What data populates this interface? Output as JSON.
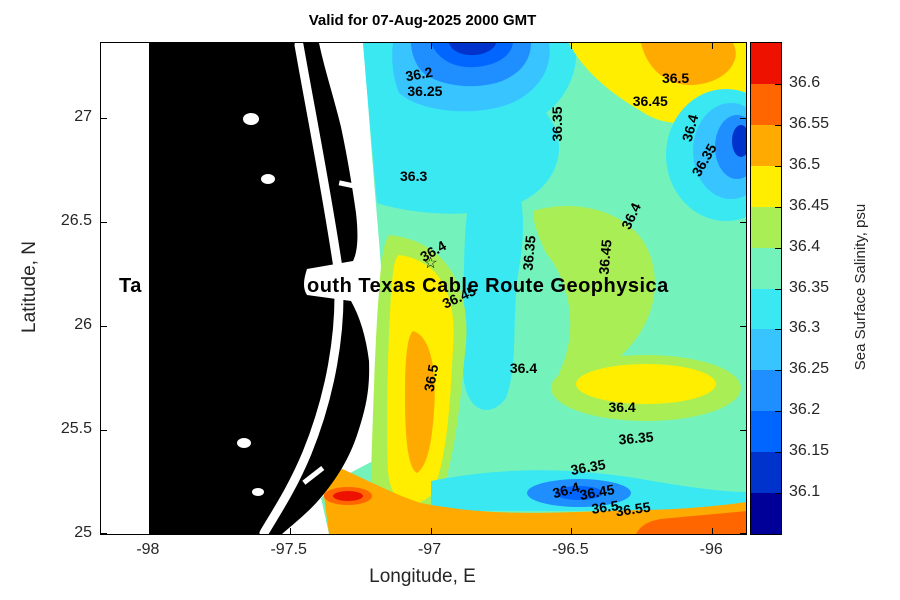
{
  "figure": {
    "overlay_text": {
      "left_fragment": "Ta",
      "right_fragment": "outh Texas Cable Route Geophysica"
    }
  },
  "chart_data": {
    "type": "contour",
    "title": "Valid for 07-Aug-2025 2000 GMT",
    "xlabel": "Longitude, E",
    "ylabel": "Latitude, N",
    "xlim": [
      -98.17,
      -95.88
    ],
    "ylim": [
      25,
      27.36
    ],
    "x_ticks": [
      -98,
      -97.5,
      -97,
      -96.5,
      -96
    ],
    "y_ticks": [
      25,
      25.5,
      26,
      26.5,
      27
    ],
    "grid": false,
    "land_color": "#000000",
    "colorbar": {
      "label": "Sea Surface Salinity, psu",
      "min": 36.05,
      "max": 36.65,
      "ticks": [
        36.1,
        36.15,
        36.2,
        36.25,
        36.3,
        36.35,
        36.4,
        36.45,
        36.5,
        36.55,
        36.6
      ],
      "band_colors": [
        "#000099",
        "#0033cc",
        "#0066ff",
        "#1f8fff",
        "#38c4ff",
        "#3ae8f2",
        "#74f2bb",
        "#aaee55",
        "#ffee00",
        "#ffaa00",
        "#ff6600",
        "#ee1100"
      ]
    },
    "contour_levels": [
      36.1,
      36.15,
      36.2,
      36.25,
      36.3,
      36.35,
      36.4,
      36.45,
      36.5,
      36.55,
      36.6
    ],
    "contour_labels": [
      {
        "value": 36.2,
        "lon": -97.04,
        "lat": 27.21,
        "rot": -10
      },
      {
        "value": 36.25,
        "lon": -97.02,
        "lat": 27.13,
        "rot": 0
      },
      {
        "value": 36.3,
        "lon": -97.06,
        "lat": 26.72,
        "rot": 0
      },
      {
        "value": 36.45,
        "lon": -96.22,
        "lat": 27.08,
        "rot": 0
      },
      {
        "value": 36.5,
        "lon": -96.13,
        "lat": 27.19,
        "rot": 0
      },
      {
        "value": 36.35,
        "lon": -96.55,
        "lat": 26.97,
        "rot": -90
      },
      {
        "value": 36.4,
        "lon": -96.08,
        "lat": 26.95,
        "rot": -75
      },
      {
        "value": 36.35,
        "lon": -96.03,
        "lat": 26.8,
        "rot": -60
      },
      {
        "value": 36.4,
        "lon": -96.29,
        "lat": 26.53,
        "rot": -65
      },
      {
        "value": 36.45,
        "lon": -96.38,
        "lat": 26.33,
        "rot": -85
      },
      {
        "value": 36.35,
        "lon": -96.65,
        "lat": 26.35,
        "rot": -85
      },
      {
        "value": 36.4,
        "lon": -96.99,
        "lat": 26.36,
        "rot": -30
      },
      {
        "value": 36.45,
        "lon": -96.9,
        "lat": 26.14,
        "rot": -25
      },
      {
        "value": 36.5,
        "lon": -97.0,
        "lat": 25.75,
        "rot": -80
      },
      {
        "value": 36.4,
        "lon": -96.67,
        "lat": 25.8,
        "rot": 0
      },
      {
        "value": 36.4,
        "lon": -96.32,
        "lat": 25.61,
        "rot": 0
      },
      {
        "value": 36.35,
        "lon": -96.27,
        "lat": 25.46,
        "rot": -5
      },
      {
        "value": 36.35,
        "lon": -96.44,
        "lat": 25.32,
        "rot": -10
      },
      {
        "value": 36.4,
        "lon": -96.52,
        "lat": 25.21,
        "rot": -15
      },
      {
        "value": 36.45,
        "lon": -96.41,
        "lat": 25.2,
        "rot": -10
      },
      {
        "value": 36.5,
        "lon": -96.38,
        "lat": 25.13,
        "rot": -8
      },
      {
        "value": 36.55,
        "lon": -96.28,
        "lat": 25.12,
        "rot": -8
      }
    ],
    "marker": {
      "shape": "star",
      "symbol": "☆",
      "lon": -97.0,
      "lat": 26.3
    }
  }
}
